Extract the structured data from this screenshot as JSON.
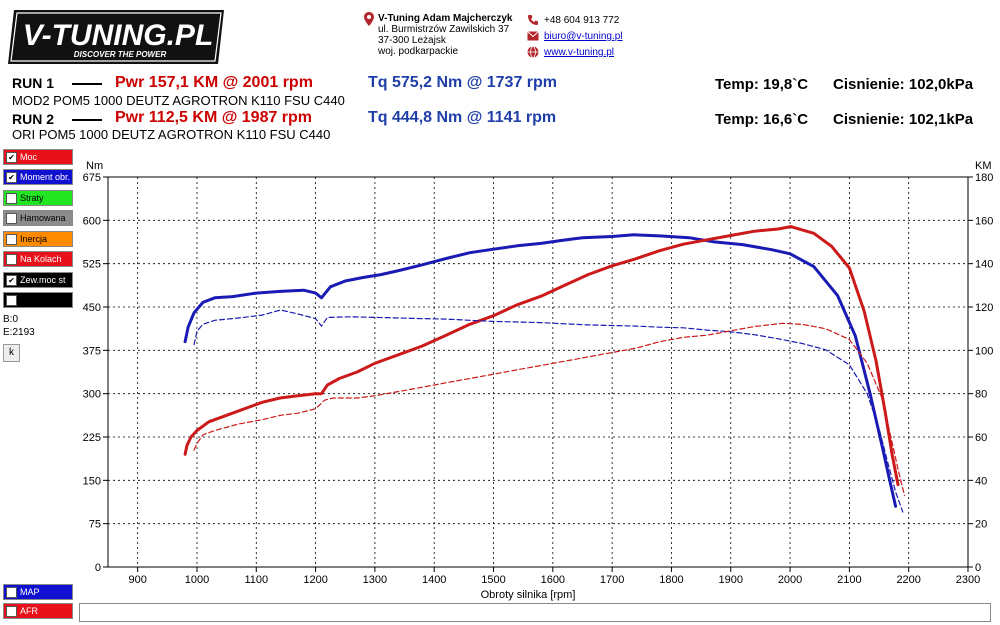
{
  "logo": {
    "name": "V-TUNING.PL",
    "tagline": "DISCOVER THE POWER"
  },
  "contact": {
    "company": "V-Tuning Adam Majcherczyk",
    "street": "ul. Burmistrzów Zawilskich 37",
    "city": "37-300 Leżajsk",
    "region": "woj. podkarpackie",
    "phone": "+48 604 913 772",
    "email": "biuro@v-tuning.pl",
    "website": "www.v-tuning.pl"
  },
  "runs": [
    {
      "label": "RUN 1",
      "power": "Pwr  157,1 KM @ 2001 rpm",
      "torque": "Tq 575,2 Nm @ 1737 rpm",
      "temp": "Temp: 19,8`C",
      "pressure": "Cisnienie: 102,0kPa",
      "description": "MOD2 POM5 1000 DEUTZ AGROTRON K110 FSU C440"
    },
    {
      "label": "RUN 2",
      "power": "Pwr  112,5 KM @ 1987 rpm",
      "torque": "Tq 444,8 Nm @ 1141 rpm",
      "temp": "Temp: 16,6`C",
      "pressure": "Cisnienie: 102,1kPa",
      "description": "ORI POM5 1000 DEUTZ AGROTRON K110 FSU C440"
    }
  ],
  "legend": [
    {
      "label": "Moc",
      "checked": true,
      "color": "#e8101a",
      "text_color": "#ffffff"
    },
    {
      "label": "Moment obr.",
      "checked": true,
      "color": "#1010d0",
      "text_color": "#ffffff"
    },
    {
      "label": "Straty",
      "checked": false,
      "color": "#22e622",
      "text_color": "#000000"
    },
    {
      "label": "Hamowana",
      "checked": false,
      "color": "#8c8c8c",
      "text_color": "#000000"
    },
    {
      "label": "Inercja",
      "checked": false,
      "color": "#ff8c00",
      "text_color": "#000000"
    },
    {
      "label": "Na Kolach",
      "checked": false,
      "color": "#e8101a",
      "text_color": "#ffffff"
    },
    {
      "label": "Zew.moc st",
      "checked": true,
      "color": "#000000",
      "text_color": "#ffffff"
    },
    {
      "label": "",
      "checked": false,
      "color": "#000000",
      "text_color": "#ffffff"
    }
  ],
  "legend_bottom": [
    {
      "label": "MAP",
      "checked": false,
      "color": "#1010d0",
      "text_color": "#ffffff"
    },
    {
      "label": "AFR",
      "checked": false,
      "color": "#e8101a",
      "text_color": "#ffffff"
    }
  ],
  "side_info": {
    "b": "B:0",
    "e": "E:2193",
    "k_button": "k"
  },
  "chart_data": {
    "type": "line",
    "title": "",
    "xlabel": "Obroty silnika [rpm]",
    "ylabel_left": "Nm",
    "ylabel_right": "KM",
    "xlim": [
      850,
      2300
    ],
    "ylim_left": [
      0,
      675
    ],
    "ylim_right": [
      0,
      180
    ],
    "x_ticks": [
      900,
      1000,
      1100,
      1200,
      1300,
      1400,
      1500,
      1600,
      1700,
      1800,
      1900,
      2000,
      2100,
      2200,
      2300
    ],
    "y_ticks_left": [
      0,
      75,
      150,
      225,
      300,
      375,
      450,
      525,
      600,
      675
    ],
    "y_ticks_right": [
      0,
      20,
      40,
      60,
      80,
      100,
      120,
      140,
      160,
      180
    ],
    "grid": true,
    "colors": {
      "power": "#cc1a1a",
      "torque": "#1a1ab4"
    },
    "series": [
      {
        "name": "RUN 1 Tq",
        "run": 1,
        "axis": "left",
        "style": "solid",
        "x": [
          980,
          985,
          995,
          1010,
          1030,
          1060,
          1100,
          1140,
          1180,
          1200,
          1210,
          1225,
          1250,
          1280,
          1310,
          1340,
          1380,
          1420,
          1460,
          1500,
          1540,
          1580,
          1620,
          1650,
          1700,
          1737,
          1780,
          1830,
          1870,
          1920,
          1970,
          2000,
          2040,
          2080,
          2110,
          2135,
          2155,
          2168,
          2178
        ],
        "y": [
          390,
          415,
          440,
          458,
          466,
          468,
          474,
          477,
          479,
          474,
          466,
          485,
          495,
          501,
          506,
          513,
          523,
          534,
          544,
          550,
          556,
          560,
          566,
          570,
          572,
          575,
          573,
          570,
          563,
          558,
          549,
          542,
          520,
          470,
          400,
          300,
          210,
          150,
          105
        ]
      },
      {
        "name": "RUN 1 Pwr",
        "run": 1,
        "axis": "right",
        "style": "solid",
        "x": [
          980,
          983,
          990,
          1000,
          1020,
          1050,
          1080,
          1110,
          1140,
          1170,
          1200,
          1210,
          1220,
          1240,
          1270,
          1300,
          1340,
          1380,
          1420,
          1460,
          1500,
          1540,
          1580,
          1620,
          1660,
          1700,
          1737,
          1780,
          1820,
          1860,
          1900,
          1940,
          1980,
          2001,
          2040,
          2070,
          2100,
          2125,
          2145,
          2160,
          2172,
          2182
        ],
        "y": [
          52,
          56,
          60,
          63,
          67,
          70,
          73,
          76,
          78,
          79,
          80,
          80,
          84,
          87,
          90,
          94,
          98,
          102,
          107,
          112,
          116,
          121,
          125,
          130,
          135,
          139,
          142,
          146,
          149,
          151,
          153,
          155,
          156,
          157.1,
          154,
          148,
          138,
          118,
          95,
          72,
          52,
          38
        ]
      },
      {
        "name": "RUN 2 Tq",
        "run": 2,
        "axis": "left",
        "style": "dashed",
        "x": [
          995,
          1000,
          1010,
          1030,
          1070,
          1110,
          1141,
          1170,
          1200,
          1210,
          1220,
          1260,
          1300,
          1340,
          1380,
          1420,
          1460,
          1500,
          1540,
          1580,
          1620,
          1660,
          1700,
          1740,
          1780,
          1820,
          1860,
          1900,
          1940,
          1980,
          2020,
          2060,
          2100,
          2130,
          2150,
          2165,
          2178,
          2190
        ],
        "y": [
          385,
          408,
          420,
          427,
          431,
          436,
          444.8,
          438,
          430,
          417,
          432,
          433,
          432,
          431,
          430,
          429,
          427,
          425,
          424,
          423,
          421,
          419,
          418,
          417,
          415,
          414,
          410,
          407,
          402,
          395,
          387,
          376,
          350,
          300,
          240,
          180,
          130,
          95
        ]
      },
      {
        "name": "RUN 2 Pwr",
        "run": 2,
        "axis": "right",
        "style": "dashed",
        "x": [
          995,
          1000,
          1010,
          1030,
          1070,
          1110,
          1141,
          1170,
          1200,
          1215,
          1230,
          1270,
          1300,
          1340,
          1380,
          1420,
          1460,
          1500,
          1540,
          1580,
          1620,
          1660,
          1700,
          1740,
          1780,
          1820,
          1860,
          1900,
          1940,
          1987,
          2020,
          2060,
          2100,
          2130,
          2155,
          2170,
          2183,
          2193
        ],
        "y": [
          54,
          57,
          61,
          63,
          66,
          68,
          70,
          71,
          73,
          77,
          78,
          78,
          79,
          81,
          83,
          85,
          87,
          89,
          91,
          93,
          95,
          97,
          99,
          101,
          104,
          106,
          107,
          109,
          111,
          112.5,
          112,
          110,
          105,
          94,
          78,
          60,
          44,
          33
        ]
      }
    ]
  }
}
